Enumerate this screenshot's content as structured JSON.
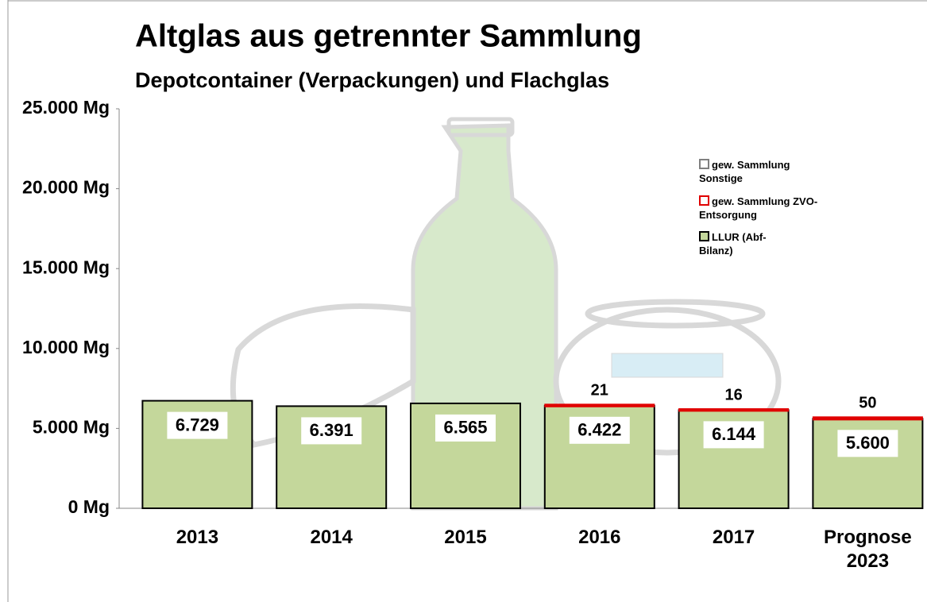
{
  "chart_data": {
    "type": "bar",
    "stacked": true,
    "title": "Altglas aus getrennter Sammlung",
    "subtitle": "Depotcontainer (Verpackungen) und Flachglas",
    "categories": [
      "2013",
      "2014",
      "2015",
      "2016",
      "2017",
      "Prognose 2023"
    ],
    "series": [
      {
        "name": "LLUR (Abf-Bilanz)",
        "color": "#c4d79b",
        "values": [
          6729,
          6391,
          6565,
          6422,
          6144,
          5600
        ],
        "value_labels": [
          "6.729",
          "6.391",
          "6.565",
          "6.422",
          "6.144",
          "5.600"
        ]
      },
      {
        "name": "gew. Sammlung ZVO-Entsorgung",
        "color": "#e00000",
        "values": [
          null,
          null,
          null,
          21,
          16,
          50
        ]
      },
      {
        "name": "gew. Sammlung Sonstige",
        "color": "#808080",
        "values": [
          null,
          null,
          null,
          null,
          null,
          null
        ]
      }
    ],
    "ylim": [
      0,
      25000
    ],
    "yticks": [
      {
        "value": 0,
        "label": "0 Mg"
      },
      {
        "value": 5000,
        "label": "5.000 Mg"
      },
      {
        "value": 10000,
        "label": "10.000 Mg"
      },
      {
        "value": 15000,
        "label": "15.000 Mg"
      },
      {
        "value": 20000,
        "label": "20.000 Mg"
      },
      {
        "value": 25000,
        "label": "25.000 Mg"
      }
    ],
    "grid": false
  }
}
